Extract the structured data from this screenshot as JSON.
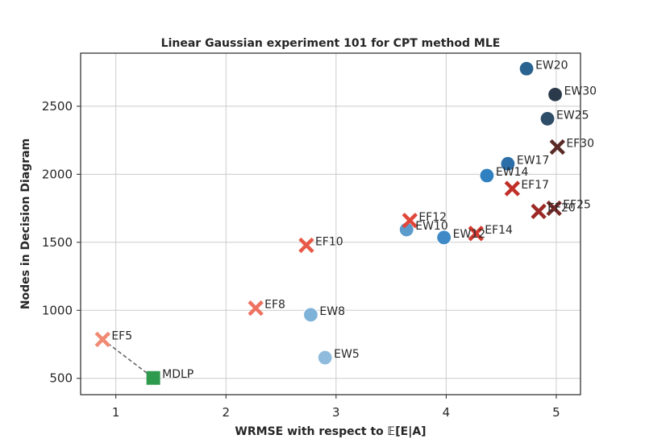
{
  "chart_data": {
    "type": "scatter",
    "title": "Linear Gaussian experiment 101 for CPT method MLE",
    "xlabel": "WRMSE with respect to 𝔼[E|A]",
    "ylabel": "Nodes in Decision Diagram",
    "xlim": [
      0.68,
      5.22
    ],
    "ylim": [
      380,
      2890
    ],
    "xticks": [
      1,
      2,
      3,
      4,
      5
    ],
    "yticks": [
      500,
      1000,
      1500,
      2000,
      2500
    ],
    "grid": true,
    "points": [
      {
        "label": "EW5",
        "x": 2.9,
        "y": 652,
        "marker": "circle",
        "color": "#8fbcdc"
      },
      {
        "label": "EW8",
        "x": 2.77,
        "y": 967,
        "marker": "circle",
        "color": "#7fb2d8"
      },
      {
        "label": "EW10",
        "x": 3.64,
        "y": 1593,
        "marker": "circle",
        "color": "#5c9ccd"
      },
      {
        "label": "EW12",
        "x": 3.98,
        "y": 1535,
        "marker": "circle",
        "color": "#3f8ac6"
      },
      {
        "label": "EW14",
        "x": 4.37,
        "y": 1990,
        "marker": "circle",
        "color": "#2f80c0"
      },
      {
        "label": "EW17",
        "x": 4.56,
        "y": 2077,
        "marker": "circle",
        "color": "#2c6fa8"
      },
      {
        "label": "EW20",
        "x": 4.73,
        "y": 2776,
        "marker": "circle",
        "color": "#2b6390"
      },
      {
        "label": "EW25",
        "x": 4.92,
        "y": 2408,
        "marker": "circle",
        "color": "#2e4d68"
      },
      {
        "label": "EW30",
        "x": 4.99,
        "y": 2586,
        "marker": "circle",
        "color": "#2b3a4b"
      },
      {
        "label": "EF5",
        "x": 0.88,
        "y": 786,
        "marker": "x",
        "color": "#f08a72"
      },
      {
        "label": "EF8",
        "x": 2.27,
        "y": 1016,
        "marker": "x",
        "color": "#ee7260"
      },
      {
        "label": "EF10",
        "x": 2.73,
        "y": 1478,
        "marker": "x",
        "color": "#e75a48"
      },
      {
        "label": "EF12",
        "x": 3.67,
        "y": 1660,
        "marker": "x",
        "color": "#e0483a"
      },
      {
        "label": "EF14",
        "x": 4.27,
        "y": 1565,
        "marker": "x",
        "color": "#d23a2e"
      },
      {
        "label": "EF17",
        "x": 4.6,
        "y": 1895,
        "marker": "x",
        "color": "#c12f29"
      },
      {
        "label": "EF20",
        "x": 4.84,
        "y": 1727,
        "marker": "x",
        "color": "#9c2a26"
      },
      {
        "label": "EF25",
        "x": 4.98,
        "y": 1750,
        "marker": "x",
        "color": "#7a2a26"
      },
      {
        "label": "EF30",
        "x": 5.01,
        "y": 2200,
        "marker": "x",
        "color": "#5a2a26"
      },
      {
        "label": "MDLP",
        "x": 1.34,
        "y": 503,
        "marker": "square",
        "color": "#2e9a4d"
      }
    ],
    "connector": {
      "from": "EF5",
      "to": "MDLP",
      "style": "dashed",
      "color": "#666666"
    }
  }
}
